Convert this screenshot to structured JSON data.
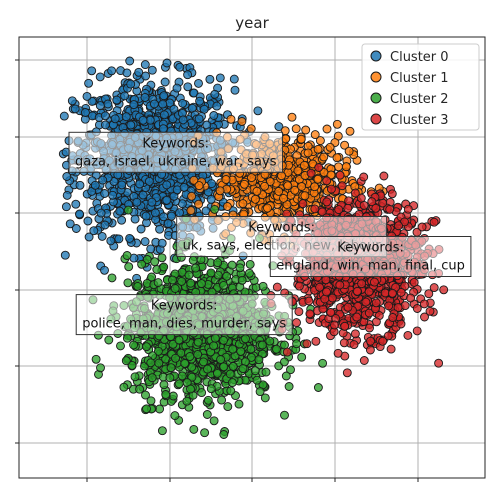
{
  "chart_data": {
    "type": "scatter",
    "title": "year",
    "xlabel": "",
    "ylabel": "",
    "xlim": [
      -0.5,
      10.5
    ],
    "ylim": [
      -0.5,
      10.5
    ],
    "grid": true,
    "legend_position": "top-right",
    "series": [
      {
        "name": "Cluster 0",
        "color": "#1f77b4",
        "n": 1200,
        "center": [
          2.7,
          7.5
        ],
        "spread": [
          1.5,
          1.55
        ],
        "range": [
          [
            0.5,
            6.0
          ],
          [
            4.3,
            10.5
          ]
        ]
      },
      {
        "name": "Cluster 1",
        "color": "#ff7f0e",
        "n": 600,
        "center": [
          5.7,
          6.9
        ],
        "spread": [
          1.3,
          1.0
        ],
        "range": [
          [
            3.3,
            9.0
          ],
          [
            2.0,
            8.5
          ]
        ]
      },
      {
        "name": "Cluster 2",
        "color": "#2ca02c",
        "n": 1300,
        "center": [
          3.8,
          3.2
        ],
        "spread": [
          1.4,
          1.35
        ],
        "range": [
          [
            1.0,
            8.0
          ],
          [
            0.1,
            6.5
          ]
        ]
      },
      {
        "name": "Cluster 3",
        "color": "#d62728",
        "n": 1200,
        "center": [
          7.5,
          4.8
        ],
        "spread": [
          1.2,
          1.3
        ],
        "range": [
          [
            4.5,
            10.5
          ],
          [
            1.5,
            8.0
          ]
        ]
      }
    ],
    "annotations": [
      {
        "heading": "Keywords:",
        "text": "gaza, israel, ukraine, war, says",
        "x": 3.2,
        "y": 7.65
      },
      {
        "heading": "Keywords:",
        "text": "uk, says, election, new, labour",
        "x": 5.7,
        "y": 5.55
      },
      {
        "heading": "Keywords:",
        "text": "england, win, man, final, cup",
        "x": 7.8,
        "y": 5.05
      },
      {
        "heading": "Keywords:",
        "text": "police, man, dies, murder, says",
        "x": 3.4,
        "y": 3.6
      }
    ]
  }
}
